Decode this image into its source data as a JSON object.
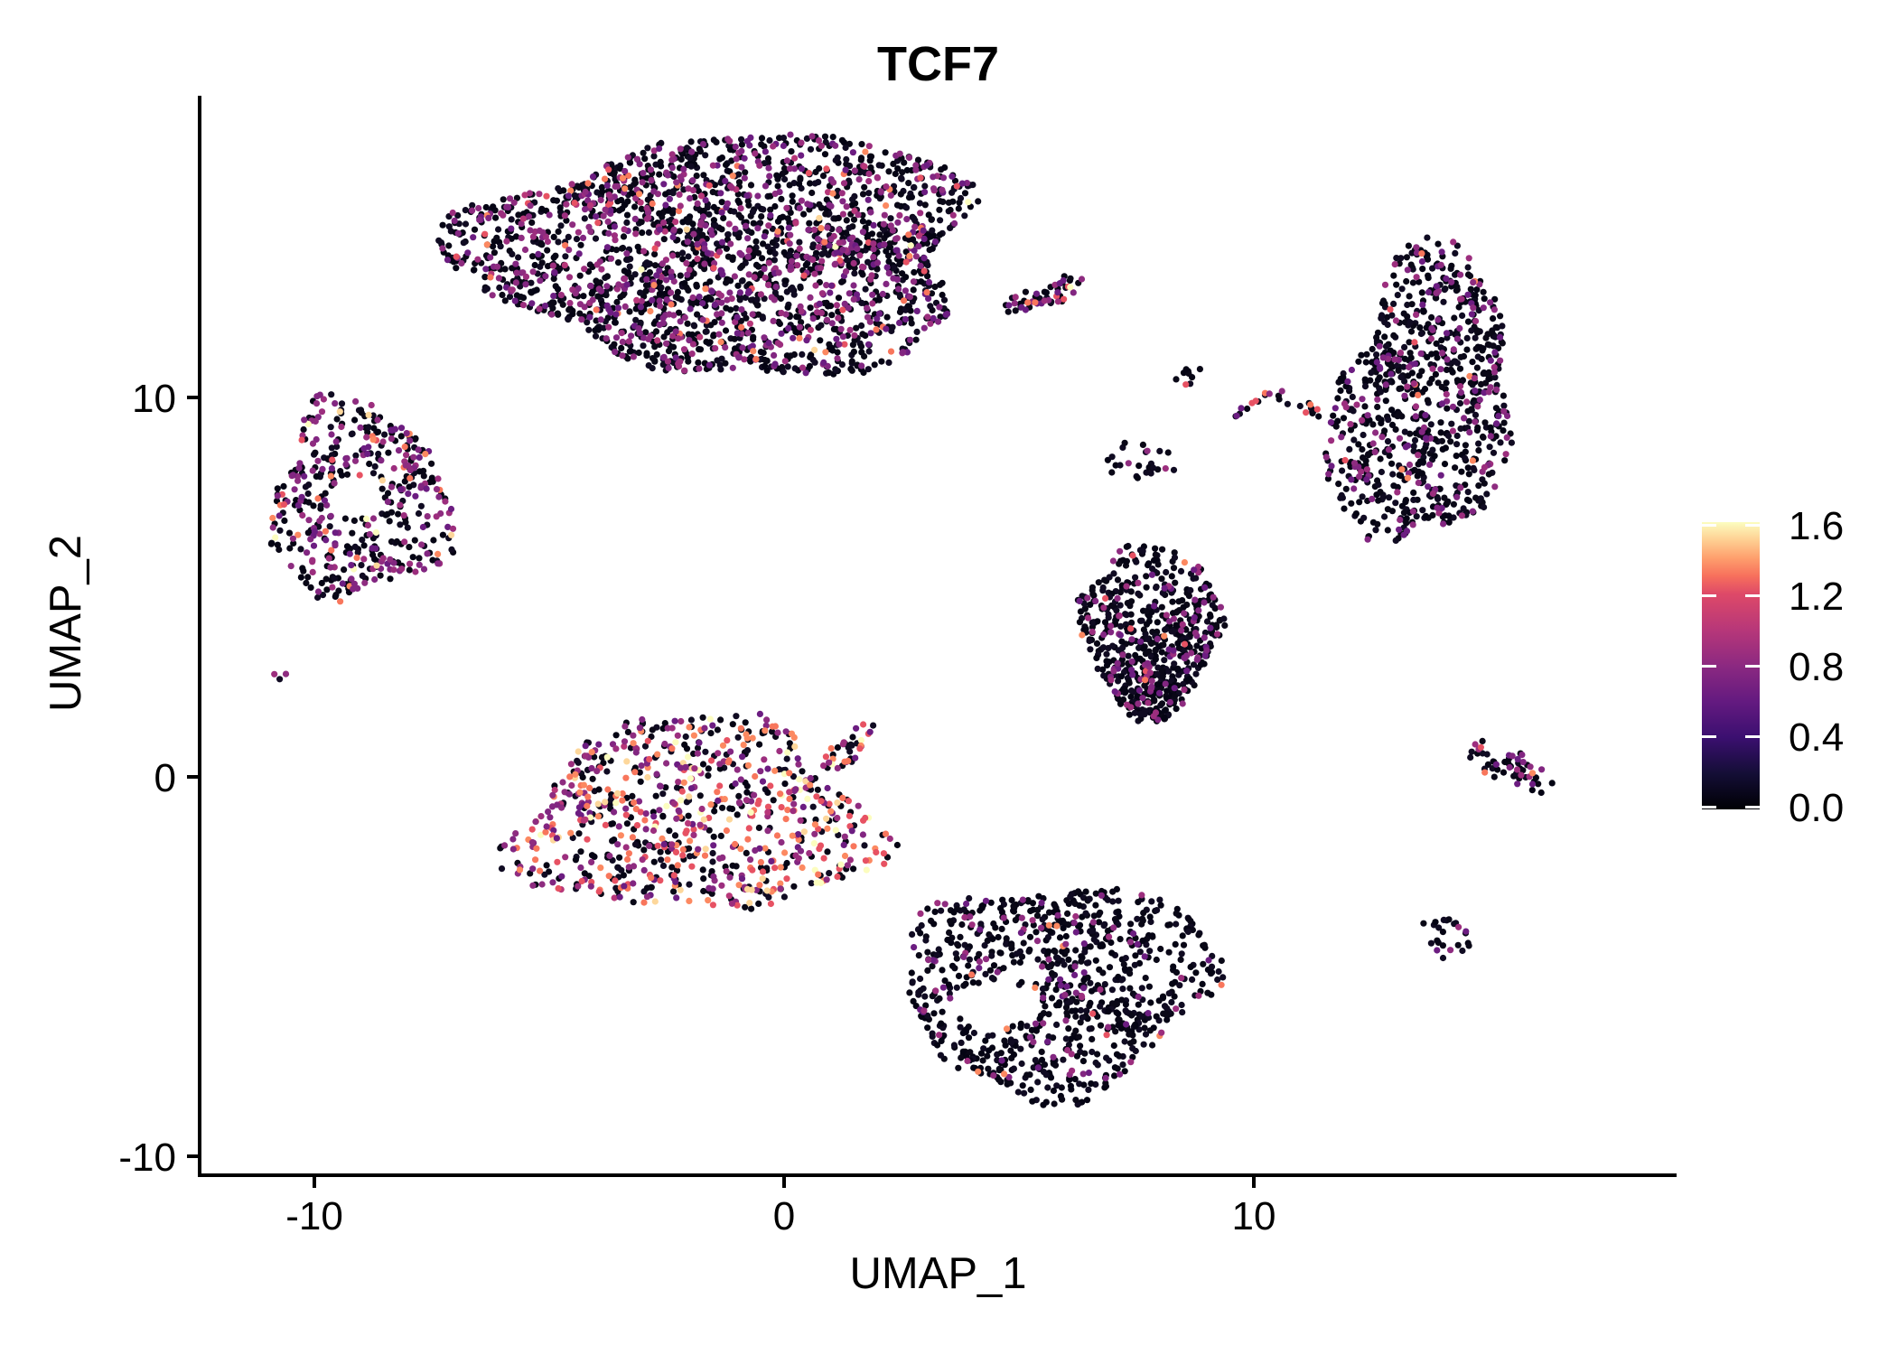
{
  "figure": {
    "background": "#ffffff"
  },
  "chart_data": {
    "type": "scatter",
    "title": "TCF7",
    "xlabel": "UMAP_1",
    "ylabel": "UMAP_2",
    "x_ticks": [
      -10,
      0,
      10
    ],
    "y_ticks": [
      -10,
      0,
      10
    ],
    "xlim": [
      -12.4,
      19.0
    ],
    "ylim": [
      -10.5,
      18.0
    ],
    "grid": false,
    "point_radius_px": 3.6,
    "legend": {
      "type": "colorbar",
      "position": "right",
      "range": [
        0.0,
        1.6
      ],
      "tick_labels": [
        "0.0",
        "0.4",
        "0.8",
        "1.2",
        "1.6"
      ],
      "tick_values": [
        0.0,
        0.4,
        0.8,
        1.2,
        1.6
      ],
      "colormap": "magma",
      "stops": [
        [
          "#000004",
          0.0
        ],
        [
          "#140e36",
          0.125
        ],
        [
          "#3b0f70",
          0.25
        ],
        [
          "#641a80",
          0.375
        ],
        [
          "#8c2981",
          0.5
        ],
        [
          "#b73779",
          0.625
        ],
        [
          "#de4968",
          0.75
        ],
        [
          "#f7705c",
          0.8125
        ],
        [
          "#fe9f6d",
          0.875
        ],
        [
          "#fecf92",
          0.9375
        ],
        [
          "#fcfdbf",
          1.0
        ]
      ]
    },
    "palette": {
      "zero": [
        "#050414",
        "#0a0817",
        "#100b22"
      ],
      "purple": [
        "#6c1d81",
        "#822681",
        "#8e2c80",
        "#9c2e7e"
      ],
      "pink": [
        "#b73779"
      ],
      "orange": [
        "#e75263",
        "#f8765c",
        "#fc8961"
      ],
      "cream": [
        "#fdd79b",
        "#fcfdbf"
      ]
    },
    "clusters": [
      {
        "name": "top-main-blob",
        "cx": -1.15,
        "cy": 13.8,
        "rx": 5.35,
        "ry": 3.15,
        "rot": 0,
        "irreg": 0.22,
        "n": 2300,
        "mix": {
          "zero": 0.66,
          "purple": 0.285,
          "pink": 0.01,
          "orange": 0.04,
          "cream": 0.005
        },
        "holes": [
          {
            "x": 3.45,
            "y": 11.5,
            "rx": 0.5,
            "ry": 0.5
          }
        ]
      },
      {
        "name": "top-right-arm",
        "cx": 5.55,
        "cy": 12.7,
        "rx": 0.95,
        "ry": 0.3,
        "rot": 25,
        "irreg": 0.2,
        "n": 55,
        "mix": {
          "zero": 0.58,
          "purple": 0.3,
          "pink": 0,
          "orange": 0.1,
          "cream": 0.02
        },
        "holes": []
      },
      {
        "name": "right-crescent",
        "cx": 13.6,
        "cy": 9.9,
        "rx": 1.85,
        "ry": 3.95,
        "rot": -8,
        "irreg": 0.22,
        "n": 840,
        "mix": {
          "zero": 0.78,
          "purple": 0.2,
          "pink": 0,
          "orange": 0.02,
          "cream": 0
        },
        "holes": []
      },
      {
        "name": "left-donut",
        "cx": -9.05,
        "cy": 7.25,
        "rx": 1.9,
        "ry": 2.6,
        "rot": 0,
        "irreg": 0.22,
        "n": 440,
        "mix": {
          "zero": 0.57,
          "purple": 0.36,
          "pink": 0,
          "orange": 0.06,
          "cream": 0.01
        },
        "holes": [
          {
            "x": -9.1,
            "y": 7.35,
            "rx": 0.55,
            "ry": 0.55
          }
        ]
      },
      {
        "name": "tiny-pair",
        "cx": -10.75,
        "cy": 2.75,
        "rx": 0.2,
        "ry": 0.22,
        "rot": 0,
        "irreg": 0,
        "n": 3,
        "mix": {
          "zero": 0.5,
          "purple": 0.5,
          "pink": 0,
          "orange": 0,
          "cream": 0
        },
        "holes": []
      },
      {
        "name": "mid-clump-a",
        "cx": 8.6,
        "cy": 10.55,
        "rx": 0.4,
        "ry": 0.32,
        "rot": 0,
        "irreg": 0.2,
        "n": 9,
        "mix": {
          "zero": 0.86,
          "purple": 0,
          "pink": 0,
          "orange": 0.14,
          "cream": 0
        },
        "holes": []
      },
      {
        "name": "mid-streak-1",
        "cx": 10.1,
        "cy": 9.85,
        "rx": 0.65,
        "ry": 0.2,
        "rot": 30,
        "irreg": 0.2,
        "n": 14,
        "mix": {
          "zero": 0.5,
          "purple": 0.33,
          "pink": 0,
          "orange": 0.17,
          "cream": 0
        },
        "holes": []
      },
      {
        "name": "mid-streak-2",
        "cx": 11.35,
        "cy": 9.6,
        "rx": 0.8,
        "ry": 0.2,
        "rot": -28,
        "irreg": 0.2,
        "n": 16,
        "mix": {
          "zero": 0.6,
          "purple": 0.24,
          "pink": 0,
          "orange": 0.16,
          "cream": 0
        },
        "holes": []
      },
      {
        "name": "mid-clump-b",
        "cx": 7.6,
        "cy": 8.3,
        "rx": 0.8,
        "ry": 0.5,
        "rot": 0,
        "irreg": 0.3,
        "n": 24,
        "mix": {
          "zero": 0.9,
          "purple": 0.1,
          "pink": 0,
          "orange": 0,
          "cream": 0
        },
        "holes": []
      },
      {
        "name": "mid-triangle",
        "cx": 7.8,
        "cy": 3.55,
        "rx": 2.35,
        "ry": 2.3,
        "rot": 0,
        "irreg": 0.18,
        "n": 640,
        "mix": {
          "zero": 0.83,
          "purple": 0.155,
          "pink": 0,
          "orange": 0.015,
          "cream": 0
        },
        "holes": [],
        "taper_min": 0.22
      },
      {
        "name": "right-comet",
        "cx": 15.45,
        "cy": 0.3,
        "rx": 1.15,
        "ry": 0.42,
        "rot": -34,
        "irreg": 0.2,
        "n": 52,
        "mix": {
          "zero": 0.55,
          "purple": 0.32,
          "pink": 0,
          "orange": 0.13,
          "cream": 0
        },
        "holes": []
      },
      {
        "name": "center-hot-blob",
        "cx": -1.9,
        "cy": -1.1,
        "rx": 3.75,
        "ry": 2.55,
        "rot": 0,
        "irreg": 0.25,
        "n": 780,
        "mix": {
          "zero": 0.37,
          "purple": 0.27,
          "pink": 0.02,
          "orange": 0.27,
          "cream": 0.07
        },
        "holes": []
      },
      {
        "name": "center-hot-arm",
        "cx": 1.3,
        "cy": 0.75,
        "rx": 0.8,
        "ry": 0.3,
        "rot": 50,
        "irreg": 0.2,
        "n": 36,
        "mix": {
          "zero": 0.42,
          "purple": 0.2,
          "pink": 0,
          "orange": 0.3,
          "cream": 0.08
        },
        "holes": []
      },
      {
        "name": "bottom-blob",
        "cx": 5.8,
        "cy": -5.5,
        "rx": 3.3,
        "ry": 2.75,
        "rot": 12,
        "irreg": 0.2,
        "n": 860,
        "mix": {
          "zero": 0.86,
          "purple": 0.12,
          "pink": 0,
          "orange": 0.02,
          "cream": 0
        },
        "holes": [
          {
            "x": 4.5,
            "y": -6.0,
            "rx": 0.95,
            "ry": 0.6
          }
        ]
      },
      {
        "name": "bottom-right-blob",
        "cx": 14.1,
        "cy": -4.2,
        "rx": 0.55,
        "ry": 0.62,
        "rot": 0,
        "irreg": 0.2,
        "n": 24,
        "mix": {
          "zero": 0.84,
          "purple": 0.16,
          "pink": 0,
          "orange": 0,
          "cream": 0
        },
        "holes": []
      }
    ]
  }
}
